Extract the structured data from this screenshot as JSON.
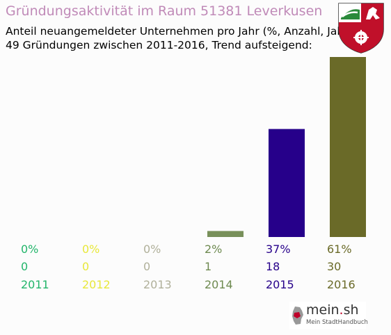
{
  "header": {
    "title": "Gründungsaktivität im Raum 51381 Leverkusen",
    "subtitle_line1": "Anteil neuangemeldeter Unternehmen pro Jahr (%, Anzahl, Jahr)",
    "subtitle_line2": "49 Gründungen zwischen 2011-2016, Trend aufsteigend:"
  },
  "logo": {
    "name": "mein",
    "dot": ".",
    "tld": "sh",
    "tagline": "Mein StadtHandbuch"
  },
  "chart_data": {
    "type": "bar",
    "categories": [
      "2011",
      "2012",
      "2013",
      "2014",
      "2015",
      "2016"
    ],
    "percent_labels": [
      "0%",
      "0%",
      "0%",
      "2%",
      "37%",
      "61%"
    ],
    "count_labels": [
      "0",
      "0",
      "0",
      "1",
      "18",
      "30"
    ],
    "values": [
      0,
      0,
      0,
      1,
      18,
      30
    ],
    "colors": [
      "#2ea043",
      "#e8e83a",
      "#b8b89a",
      "#78905a",
      "#26008a",
      "#6a6a28"
    ],
    "label_colors": [
      "#22b56a",
      "#e8e83a",
      "#b0b09a",
      "#6e8a50",
      "#26008a",
      "#6a6a28"
    ],
    "grid": false,
    "legend": "none"
  }
}
